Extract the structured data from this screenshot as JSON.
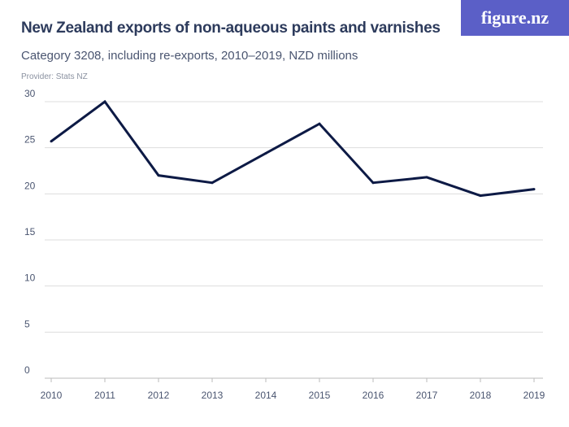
{
  "header": {
    "title": "New Zealand exports of non-aqueous paints and varnishes",
    "subtitle": "Category 3208, including re-exports, 2010–2019, NZD millions",
    "provider": "Provider: Stats NZ",
    "logo": "figure.nz"
  },
  "colors": {
    "line": "#0d1a45",
    "logo_bg": "#5b5fc7",
    "grid": "#dddddd"
  },
  "chart_data": {
    "type": "line",
    "title": "New Zealand exports of non-aqueous paints and varnishes",
    "subtitle": "Category 3208, including re-exports, 2010–2019, NZD millions",
    "categories": [
      "2010",
      "2011",
      "2012",
      "2013",
      "2014",
      "2015",
      "2016",
      "2017",
      "2018",
      "2019"
    ],
    "values": [
      25.7,
      30.0,
      22.0,
      21.2,
      24.4,
      27.6,
      21.2,
      21.8,
      19.8,
      20.5
    ],
    "ylim": [
      0,
      30
    ],
    "yticks": [
      0,
      5,
      10,
      15,
      20,
      25,
      30
    ],
    "grid": true
  }
}
